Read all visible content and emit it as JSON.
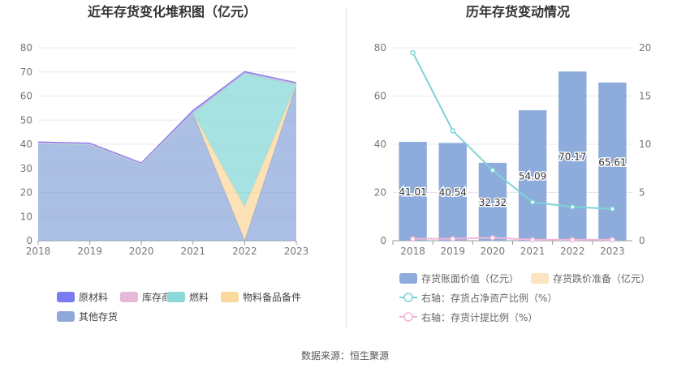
{
  "footer": {
    "source": "数据来源：恒生聚源"
  },
  "chart_data": [
    {
      "type": "area",
      "title": "近年存货变化堆积图（亿元）",
      "categories": [
        "2018",
        "2019",
        "2020",
        "2021",
        "2022",
        "2023"
      ],
      "ylim": [
        0,
        80
      ],
      "yticks": [
        0,
        10,
        20,
        30,
        40,
        50,
        60,
        70,
        80
      ],
      "stacked": true,
      "series": [
        {
          "name": "其他存货",
          "color": "#8fa8d9",
          "values": [
            40.3,
            39.8,
            31.6,
            52.8,
            0,
            64.8
          ]
        },
        {
          "name": "物料备品备件",
          "color": "#fbd89e",
          "values": [
            0,
            0,
            0,
            0,
            14.0,
            0
          ]
        },
        {
          "name": "燃料",
          "color": "#8ad8d8",
          "values": [
            0,
            0,
            0,
            0,
            55.4,
            0
          ]
        },
        {
          "name": "库存商品",
          "color": "#e6b8da",
          "values": [
            0.4,
            0.4,
            0.4,
            0.6,
            0.4,
            0.5
          ]
        },
        {
          "name": "原材料",
          "color": "#7b7bf0",
          "values": [
            0.3,
            0.3,
            0.3,
            0.7,
            0.4,
            0.3
          ]
        }
      ],
      "legend_order": [
        "原材料",
        "库存商品",
        "燃料",
        "物料备品备件",
        "其他存货"
      ],
      "legend_position": "bottom",
      "grid": true
    },
    {
      "type": "bar",
      "title": "历年存货变动情况",
      "categories": [
        "2018",
        "2019",
        "2020",
        "2021",
        "2022",
        "2023"
      ],
      "ylim": [
        0,
        80
      ],
      "yticks": [
        0,
        20,
        40,
        60,
        80
      ],
      "y2lim": [
        0,
        20
      ],
      "y2ticks": [
        0,
        5,
        10,
        15,
        20
      ],
      "series": [
        {
          "name": "存货账面价值（亿元）",
          "color": "#8eacdb",
          "values": [
            41.01,
            40.54,
            32.32,
            54.09,
            70.17,
            65.61
          ],
          "labels": [
            "41.01",
            "40.54",
            "32.32",
            "54.09",
            "70.17",
            "65.61"
          ]
        },
        {
          "name": "存货跌价准备（亿元）",
          "color": "#fce4c0",
          "values": [
            0,
            0,
            0,
            0,
            0,
            0
          ]
        },
        {
          "name": "右轴：存货占净资产比例（%）",
          "color": "#7fd3d6",
          "axis": "right",
          "values": [
            19.5,
            11.4,
            7.3,
            4.0,
            3.5,
            3.3
          ]
        },
        {
          "name": "右轴：存货计提比例（%）",
          "color": "#f0b8d8",
          "axis": "right",
          "values": [
            0.2,
            0.2,
            0.3,
            0.1,
            0.1,
            0.1
          ]
        }
      ],
      "legend_position": "bottom",
      "grid": true
    }
  ]
}
